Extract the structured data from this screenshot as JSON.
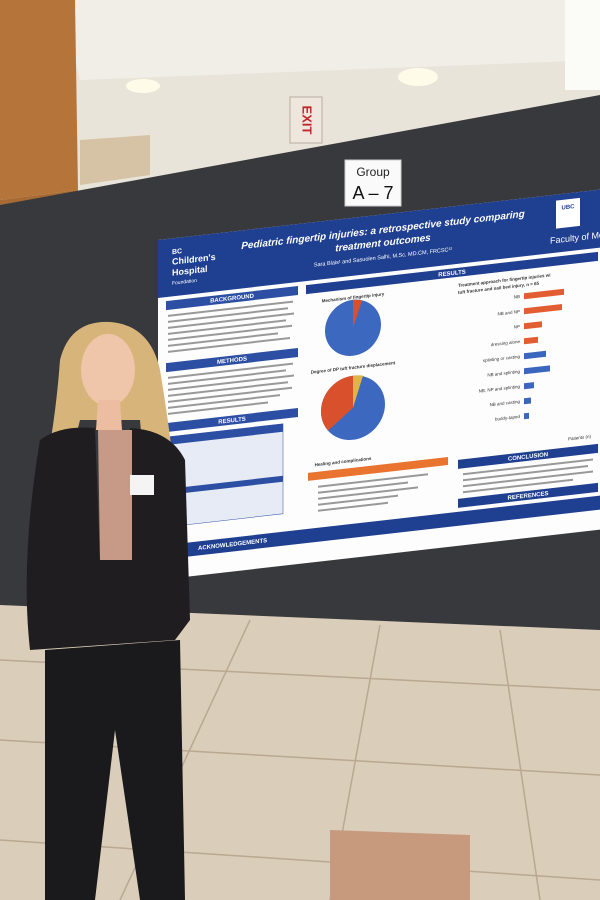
{
  "signs": {
    "exit": "EXIT",
    "group_label": "Group",
    "group_id": "A – 7"
  },
  "poster": {
    "logo": {
      "line1": "BC",
      "line2": "Children's",
      "line3": "Hospital",
      "line4": "Foundation"
    },
    "title_line1": "Pediatric fingertip injuries: a retrospective study comparing",
    "title_line2": "treatment outcomes",
    "authors": "Sara Blais¹ and Sasuolen Salhi, M.Sc, MD.CM, FRCSC¹²",
    "university": "UBC",
    "faculty": "Faculty of Me",
    "left_sections": [
      "BACKGROUND",
      "METHODS",
      "RESULTS"
    ],
    "acknowledgements": "ACKNOWLEDGEMENTS",
    "results_header": "RESULTS",
    "chart_titles": [
      "Mechanism of fingertip injury",
      "Degree of DP tuft fracture displacement",
      "Healing and complications"
    ],
    "treatment_title_line1": "Treatment approach for fingertip injuries wi",
    "treatment_title_line2": "tuft fracture and nail bed injury, n = 65",
    "treatment_labels": [
      "NB",
      "NB and NP",
      "NP",
      "dressing alone",
      "splinting or casting",
      "NB and splinting",
      "NB, NP and splinting",
      "NB and casting",
      "buddy-taped"
    ],
    "treatment_axis": "Patients (n)",
    "conclusion": "CONCLUSION",
    "references": "REFERENCES"
  }
}
